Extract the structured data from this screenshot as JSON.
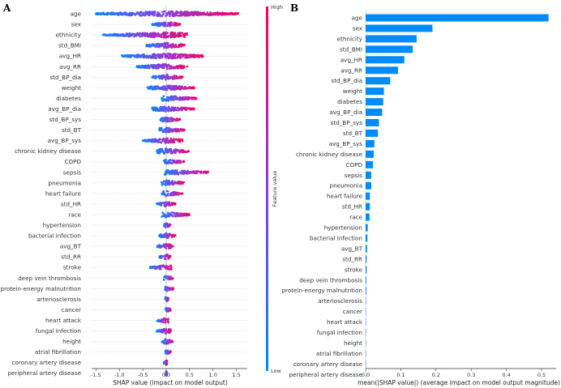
{
  "chart_data": [
    {
      "panel": "A",
      "type": "scatter",
      "subtype": "beeswarm",
      "xlabel": "SHAP value (impact on model output)",
      "xlim": [
        -1.65,
        1.75
      ],
      "xticks": [
        "-1.5",
        "-1.0",
        "-0.5",
        "0.0",
        "0.5",
        "1.0",
        "1.5"
      ],
      "xtick_values": [
        -1.5,
        -1.0,
        -0.5,
        0.0,
        0.5,
        1.0,
        1.5
      ],
      "colorbar": {
        "label": "Feature value",
        "high": "High",
        "low": "Low",
        "high_color": "#ff0052",
        "low_color": "#008bfb"
      },
      "features": [
        "age",
        "sex",
        "ethnicity",
        "std_BMI",
        "avg_HR",
        "avg_RR",
        "std_BP_dia",
        "weight",
        "diabetes",
        "avg_BP_dia",
        "std_BP_sys",
        "std_BT",
        "avg_BP_sys",
        "chronic kidney disease",
        "COPD",
        "sepsis",
        "pneumonia",
        "heart failure",
        "std_HR",
        "race",
        "hypertension",
        "bacterial infection",
        "avg_BT",
        "std_RR",
        "stroke",
        "deep vein thrombosis",
        "protein-energy malnutrition",
        "arteriosclerosis",
        "cancer",
        "heart attack",
        "fungal infection",
        "height",
        "atrial fibrillation",
        "coronary artery disease",
        "peripheral artery disease"
      ],
      "shap_ranges": [
        [
          -1.5,
          1.55
        ],
        [
          -0.3,
          0.3
        ],
        [
          -1.35,
          0.45
        ],
        [
          -0.45,
          0.4
        ],
        [
          -0.95,
          0.8
        ],
        [
          -0.65,
          0.45
        ],
        [
          -0.3,
          0.35
        ],
        [
          -0.4,
          0.6
        ],
        [
          -0.1,
          0.65
        ],
        [
          -0.3,
          0.6
        ],
        [
          -0.15,
          0.3
        ],
        [
          -0.15,
          0.4
        ],
        [
          -0.5,
          0.35
        ],
        [
          -0.2,
          0.5
        ],
        [
          -0.05,
          0.4
        ],
        [
          -0.05,
          0.9
        ],
        [
          -0.1,
          0.4
        ],
        [
          -0.1,
          0.35
        ],
        [
          -0.2,
          0.2
        ],
        [
          -0.1,
          0.5
        ],
        [
          -0.05,
          0.1
        ],
        [
          -0.15,
          0.2
        ],
        [
          -0.2,
          0.15
        ],
        [
          -0.15,
          0.1
        ],
        [
          -0.35,
          0.15
        ],
        [
          -0.05,
          0.15
        ],
        [
          -0.05,
          0.15
        ],
        [
          -0.02,
          0.05
        ],
        [
          -0.02,
          0.1
        ],
        [
          -0.2,
          0.05
        ],
        [
          -0.2,
          0.1
        ],
        [
          -0.1,
          0.15
        ],
        [
          -0.02,
          0.1
        ],
        [
          -0.05,
          0.02
        ],
        [
          -0.01,
          0.01
        ]
      ]
    },
    {
      "panel": "B",
      "type": "bar",
      "orientation": "horizontal",
      "xlabel": "mean(|SHAP value|) (average impact on model output magnitude)",
      "xlim": [
        0,
        0.54
      ],
      "xticks": [
        "0.0",
        "0.1",
        "0.2",
        "0.3",
        "0.4",
        "0.5"
      ],
      "xtick_values": [
        0,
        0.1,
        0.2,
        0.3,
        0.4,
        0.5
      ],
      "color": "#008bfb",
      "categories": [
        "age",
        "sex",
        "ethnicity",
        "std_BMI",
        "avg_HR",
        "avg_RR",
        "std_BP_dia",
        "weight",
        "diabetes",
        "avg_BP_dia",
        "std_BP_sys",
        "std_BT",
        "avg_BP_sys",
        "chronic kidney disease",
        "COPD",
        "sepsis",
        "pneumonia",
        "heart failure",
        "std_HR",
        "race",
        "hypertension",
        "bacterial infection",
        "avg_BT",
        "std_RR",
        "stroke",
        "deep vein thrombosis",
        "protein-energy malnutrition",
        "arteriosclerosis",
        "cancer",
        "heart attack",
        "fungal infection",
        "height",
        "atrial fibrillation",
        "coronary artery disease",
        "peripheral artery disease"
      ],
      "values": [
        0.52,
        0.19,
        0.145,
        0.134,
        0.11,
        0.092,
        0.07,
        0.052,
        0.05,
        0.047,
        0.038,
        0.035,
        0.025,
        0.023,
        0.021,
        0.016,
        0.016,
        0.012,
        0.012,
        0.011,
        0.006,
        0.005,
        0.004,
        0.003,
        0.003,
        0.002,
        0.002,
        0.001,
        0.001,
        0.001,
        0.001,
        0.001,
        0.001,
        0.001,
        0.0005
      ]
    }
  ]
}
